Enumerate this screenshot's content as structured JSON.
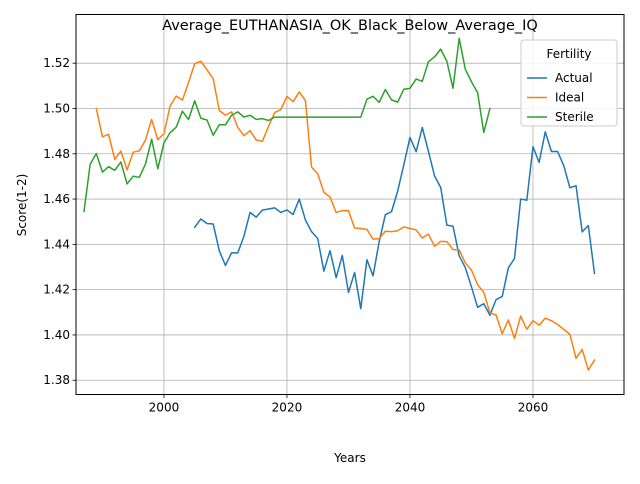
{
  "chart_data": {
    "type": "line",
    "title": "Average_EUTHANASIA_OK_Black_Below_Average_IQ",
    "xlabel": "Years",
    "ylabel": "Score(1-2)",
    "xlim": [
      1985.7,
      2074.8
    ],
    "ylim": [
      1.3737,
      1.5415
    ],
    "xticks": [
      2000,
      2020,
      2040,
      2060
    ],
    "yticks": [
      1.38,
      1.4,
      1.42,
      1.44,
      1.46,
      1.48,
      1.5,
      1.52
    ],
    "ytick_labels": [
      "1.38",
      "1.40",
      "1.42",
      "1.44",
      "1.46",
      "1.48",
      "1.50",
      "1.52"
    ],
    "grid": true,
    "legend": {
      "title": "Fertility",
      "placement": "top-right"
    },
    "series": [
      {
        "name": "Actual",
        "color": "#1f77b4",
        "x": [
          2005,
          2006,
          2007,
          2008,
          2009,
          2010,
          2011,
          2012,
          2013,
          2014,
          2015,
          2016,
          2017,
          2018,
          2019,
          2020,
          2021,
          2022,
          2023,
          2024,
          2025,
          2026,
          2027,
          2028,
          2029,
          2030,
          2031,
          2032,
          2033,
          2034,
          2035,
          2036,
          2037,
          2038,
          2039,
          2040,
          2041,
          2042,
          2043,
          2044,
          2045,
          2046,
          2047,
          2048,
          2049,
          2050,
          2051,
          2052,
          2053,
          2054,
          2055,
          2056,
          2057,
          2058,
          2059,
          2060,
          2061,
          2062,
          2063,
          2064,
          2065,
          2066,
          2067,
          2068,
          2069,
          2070
        ],
        "y": [
          1.4475,
          1.4512,
          1.4492,
          1.449,
          1.4372,
          1.4307,
          1.4363,
          1.4362,
          1.4436,
          1.4541,
          1.452,
          1.4551,
          1.4556,
          1.4561,
          1.4541,
          1.4552,
          1.4532,
          1.46,
          1.4508,
          1.4456,
          1.4426,
          1.4282,
          1.4372,
          1.4253,
          1.4351,
          1.4188,
          1.4276,
          1.4116,
          1.4332,
          1.4261,
          1.4413,
          1.4531,
          1.4544,
          1.4635,
          1.4752,
          1.4872,
          1.4809,
          1.4916,
          1.4811,
          1.4702,
          1.4651,
          1.4485,
          1.448,
          1.435,
          1.4297,
          1.4212,
          1.4122,
          1.4138,
          1.4087,
          1.4156,
          1.417,
          1.4296,
          1.4338,
          1.46,
          1.4595,
          1.4831,
          1.4762,
          1.4897,
          1.481,
          1.481,
          1.4748,
          1.465,
          1.4659,
          1.4455,
          1.4483,
          1.4272
        ]
      },
      {
        "name": "Ideal",
        "color": "#ff7f0e",
        "x": [
          1989,
          1990,
          1991,
          1992,
          1993,
          1994,
          1995,
          1996,
          1997,
          1998,
          1999,
          2000,
          2001,
          2002,
          2003,
          2004,
          2005,
          2006,
          2007,
          2008,
          2009,
          2010,
          2011,
          2012,
          2013,
          2014,
          2015,
          2016,
          2017,
          2018,
          2019,
          2020,
          2021,
          2022,
          2023,
          2024,
          2025,
          2026,
          2027,
          2028,
          2029,
          2030,
          2031,
          2032,
          2033,
          2034,
          2035,
          2036,
          2037,
          2038,
          2039,
          2040,
          2041,
          2042,
          2043,
          2044,
          2045,
          2046,
          2047,
          2048,
          2049,
          2050,
          2051,
          2052,
          2053,
          2054,
          2055,
          2056,
          2057,
          2058,
          2059,
          2060,
          2061,
          2062,
          2063,
          2064,
          2065,
          2066,
          2067,
          2068,
          2069,
          2070
        ],
        "y": [
          1.5,
          1.4875,
          1.4886,
          1.4775,
          1.4812,
          1.4729,
          1.4807,
          1.4813,
          1.4861,
          1.4952,
          1.4862,
          1.4889,
          1.5011,
          1.5055,
          1.5037,
          1.5115,
          1.5198,
          1.5209,
          1.517,
          1.5132,
          1.4991,
          1.497,
          1.4985,
          1.4917,
          1.488,
          1.4902,
          1.4861,
          1.4855,
          1.4921,
          1.4982,
          1.4995,
          1.5053,
          1.503,
          1.5073,
          1.5035,
          1.4741,
          1.4712,
          1.463,
          1.4609,
          1.4541,
          1.4549,
          1.4549,
          1.4472,
          1.447,
          1.4466,
          1.4423,
          1.4426,
          1.4458,
          1.4456,
          1.446,
          1.4477,
          1.447,
          1.4464,
          1.4428,
          1.4445,
          1.4392,
          1.4413,
          1.4412,
          1.4377,
          1.4376,
          1.4318,
          1.4286,
          1.4222,
          1.4188,
          1.4097,
          1.4088,
          1.4005,
          1.4066,
          1.3985,
          1.4083,
          1.4025,
          1.4063,
          1.4043,
          1.4074,
          1.4063,
          1.4046,
          1.4025,
          1.4003,
          1.3897,
          1.3936,
          1.3845,
          1.3889
        ]
      },
      {
        "name": "Sterile",
        "color": "#2ca02c",
        "x": [
          1987,
          1988,
          1989,
          1990,
          1991,
          1992,
          1993,
          1994,
          1995,
          1996,
          1997,
          1998,
          1999,
          2000,
          2001,
          2002,
          2003,
          2004,
          2005,
          2006,
          2007,
          2008,
          2009,
          2010,
          2011,
          2012,
          2013,
          2014,
          2015,
          2016,
          2017,
          2018,
          2019,
          2020,
          2021,
          2022,
          2023,
          2024,
          2025,
          2026,
          2027,
          2028,
          2029,
          2030,
          2031,
          2032,
          2033,
          2034,
          2035,
          2036,
          2037,
          2038,
          2039,
          2040,
          2041,
          2042,
          2043,
          2044,
          2045,
          2046,
          2047,
          2048,
          2049,
          2050,
          2051,
          2052,
          2053
        ],
        "y": [
          1.4545,
          1.4754,
          1.4801,
          1.4719,
          1.4743,
          1.4727,
          1.4764,
          1.4667,
          1.4701,
          1.4696,
          1.4755,
          1.4864,
          1.4734,
          1.4848,
          1.4893,
          1.4918,
          1.4988,
          1.4951,
          1.5034,
          1.4957,
          1.4949,
          1.4882,
          1.4928,
          1.4928,
          1.497,
          1.4985,
          1.4962,
          1.497,
          1.4952,
          1.4955,
          1.4947,
          1.4962,
          1.4962,
          1.4962,
          1.4962,
          1.4962,
          1.4962,
          1.4962,
          1.4962,
          1.4962,
          1.4962,
          1.4962,
          1.4962,
          1.4962,
          1.4962,
          1.4962,
          1.5041,
          1.5054,
          1.5027,
          1.5084,
          1.5038,
          1.5028,
          1.5085,
          1.5089,
          1.513,
          1.512,
          1.5206,
          1.5228,
          1.5262,
          1.5208,
          1.5089,
          1.531,
          1.5173,
          1.5118,
          1.507,
          1.4894,
          1.5
        ]
      }
    ]
  }
}
